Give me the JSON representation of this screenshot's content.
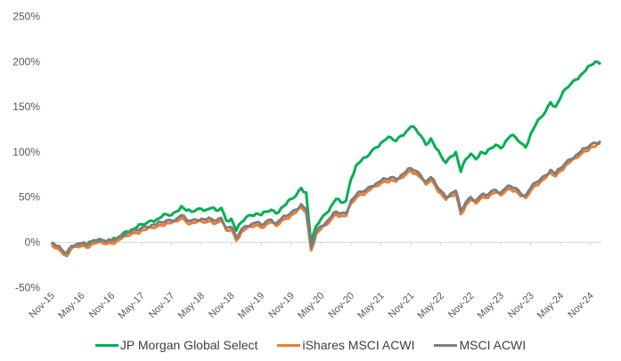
{
  "chart_data": {
    "type": "line",
    "title": "",
    "xlabel": "",
    "ylabel": "",
    "ylim": [
      -50,
      250
    ],
    "yticks": [
      "250%",
      "200%",
      "150%",
      "100%",
      "50%",
      "0%",
      "-50%"
    ],
    "ytick_values": [
      250,
      200,
      150,
      100,
      50,
      0,
      -50
    ],
    "xticks": [
      "Nov-15",
      "May-16",
      "Nov-16",
      "May-17",
      "Nov-17",
      "May-18",
      "Nov-18",
      "May-19",
      "Nov-19",
      "May-20",
      "Nov-20",
      "May-21",
      "Nov-21",
      "May-22",
      "Nov-22",
      "May-23",
      "Nov-23",
      "May-24",
      "Nov-24"
    ],
    "grid": false,
    "legend_position": "bottom",
    "x_months": [
      "2015-11",
      "2015-12",
      "2016-01",
      "2016-02",
      "2016-03",
      "2016-04",
      "2016-05",
      "2016-06",
      "2016-07",
      "2016-08",
      "2016-09",
      "2016-10",
      "2016-11",
      "2016-12",
      "2017-01",
      "2017-02",
      "2017-03",
      "2017-04",
      "2017-05",
      "2017-06",
      "2017-07",
      "2017-08",
      "2017-09",
      "2017-10",
      "2017-11",
      "2017-12",
      "2018-01",
      "2018-02",
      "2018-03",
      "2018-04",
      "2018-05",
      "2018-06",
      "2018-07",
      "2018-08",
      "2018-09",
      "2018-10",
      "2018-11",
      "2018-12",
      "2019-01",
      "2019-02",
      "2019-03",
      "2019-04",
      "2019-05",
      "2019-06",
      "2019-07",
      "2019-08",
      "2019-09",
      "2019-10",
      "2019-11",
      "2019-12",
      "2020-01",
      "2020-02",
      "2020-03",
      "2020-04",
      "2020-05",
      "2020-06",
      "2020-07",
      "2020-08",
      "2020-09",
      "2020-10",
      "2020-11",
      "2020-12",
      "2021-01",
      "2021-02",
      "2021-03",
      "2021-04",
      "2021-05",
      "2021-06",
      "2021-07",
      "2021-08",
      "2021-09",
      "2021-10",
      "2021-11",
      "2021-12",
      "2022-01",
      "2022-02",
      "2022-03",
      "2022-04",
      "2022-05",
      "2022-06",
      "2022-07",
      "2022-08",
      "2022-09",
      "2022-10",
      "2022-11",
      "2022-12",
      "2023-01",
      "2023-02",
      "2023-03",
      "2023-04",
      "2023-05",
      "2023-06",
      "2023-07",
      "2023-08",
      "2023-09",
      "2023-10",
      "2023-11",
      "2023-12",
      "2024-01",
      "2024-02",
      "2024-03",
      "2024-04",
      "2024-05",
      "2024-06",
      "2024-07",
      "2024-08",
      "2024-09",
      "2024-10",
      "2024-11",
      "2024-12",
      "2025-01"
    ],
    "series": [
      {
        "name": "JP Morgan Global Select",
        "color": "#00b050",
        "values": [
          0,
          -5,
          -10,
          -15,
          -6,
          -3,
          -2,
          -4,
          1,
          2,
          3,
          1,
          2,
          4,
          8,
          12,
          14,
          16,
          20,
          21,
          24,
          25,
          28,
          31,
          30,
          34,
          40,
          35,
          34,
          36,
          37,
          36,
          38,
          35,
          38,
          24,
          26,
          13,
          22,
          28,
          30,
          32,
          30,
          34,
          36,
          32,
          38,
          42,
          48,
          52,
          60,
          55,
          -2,
          18,
          26,
          32,
          40,
          48,
          44,
          46,
          70,
          85,
          90,
          94,
          100,
          105,
          110,
          114,
          116,
          112,
          118,
          122,
          128,
          125,
          118,
          108,
          115,
          104,
          96,
          88,
          95,
          100,
          78,
          92,
          98,
          92,
          100,
          98,
          104,
          108,
          104,
          112,
          118,
          116,
          110,
          105,
          120,
          130,
          138,
          145,
          155,
          150,
          160,
          170,
          175,
          180,
          185,
          190,
          196,
          200,
          197
        ]
      },
      {
        "name": "iShares MSCI ACWI",
        "color": "#ed7d31",
        "values": [
          -2,
          -6,
          -10,
          -13,
          -6,
          -4,
          -3,
          -5,
          -1,
          0,
          1,
          -1,
          0,
          2,
          5,
          8,
          10,
          11,
          14,
          15,
          17,
          18,
          20,
          22,
          22,
          24,
          28,
          23,
          22,
          23,
          24,
          23,
          24,
          22,
          25,
          14,
          15,
          3,
          12,
          16,
          18,
          20,
          17,
          21,
          23,
          19,
          24,
          27,
          31,
          34,
          40,
          34,
          -8,
          10,
          16,
          20,
          26,
          32,
          30,
          30,
          44,
          50,
          54,
          56,
          60,
          63,
          66,
          68,
          70,
          68,
          72,
          76,
          80,
          77,
          72,
          65,
          70,
          62,
          55,
          48,
          52,
          55,
          32,
          42,
          48,
          44,
          50,
          50,
          54,
          56,
          53,
          58,
          60,
          58,
          52,
          50,
          58,
          64,
          68,
          72,
          78,
          74,
          80,
          86,
          90,
          94,
          98,
          102,
          106,
          107,
          110
        ]
      },
      {
        "name": "MSCI ACWI",
        "color": "#7f7f7f",
        "values": [
          0,
          -4,
          -8,
          -12,
          -4,
          -2,
          -1,
          -3,
          1,
          2,
          3,
          1,
          2,
          4,
          7,
          10,
          12,
          13,
          16,
          17,
          19,
          20,
          22,
          24,
          24,
          26,
          30,
          25,
          24,
          25,
          26,
          25,
          26,
          24,
          27,
          16,
          17,
          5,
          14,
          18,
          20,
          22,
          19,
          23,
          25,
          21,
          26,
          29,
          33,
          36,
          42,
          36,
          -6,
          12,
          18,
          22,
          28,
          34,
          32,
          32,
          46,
          52,
          56,
          58,
          62,
          65,
          68,
          70,
          72,
          70,
          74,
          78,
          82,
          79,
          74,
          67,
          72,
          64,
          57,
          50,
          54,
          57,
          35,
          44,
          50,
          46,
          52,
          52,
          56,
          58,
          55,
          60,
          62,
          60,
          54,
          52,
          60,
          66,
          70,
          74,
          80,
          76,
          82,
          88,
          92,
          96,
          100,
          104,
          108,
          110,
          112
        ]
      }
    ]
  }
}
